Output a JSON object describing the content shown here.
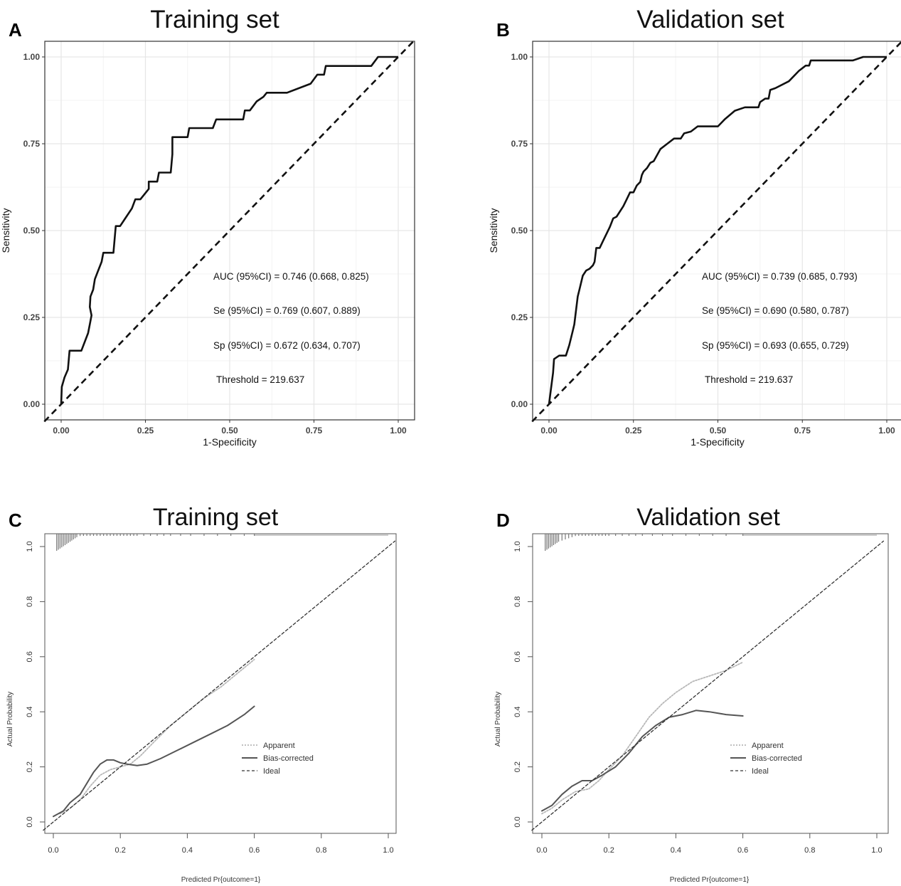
{
  "chart_data": [
    {
      "panel": "A",
      "type": "line",
      "title": "Training set",
      "xlabel": "1-Specificity",
      "ylabel": "Sensitivity",
      "xlim": [
        0,
        1
      ],
      "ylim": [
        0,
        1
      ],
      "xticks": [
        "0.00",
        "0.25",
        "0.50",
        "0.75",
        "1.00"
      ],
      "yticks": [
        "0.00",
        "0.25",
        "0.50",
        "0.75",
        "1.00"
      ],
      "grid": true,
      "annotations": [
        "AUC (95%CI) = 0.746 (0.668, 0.825)",
        "Se (95%CI) = 0.769 (0.607, 0.889)",
        "Sp (95%CI) = 0.672 (0.634, 0.707)",
        "Threshold = 219.637"
      ],
      "reference_line": [
        [
          0,
          0
        ],
        [
          1,
          1
        ]
      ],
      "series": [
        {
          "points": [
            [
              0,
              0
            ],
            [
              0.002,
              0.05
            ],
            [
              0.01,
              0.077
            ],
            [
              0.02,
              0.1
            ],
            [
              0.025,
              0.154
            ],
            [
              0.06,
              0.154
            ],
            [
              0.08,
              0.205
            ],
            [
              0.085,
              0.23
            ],
            [
              0.09,
              0.256
            ],
            [
              0.085,
              0.28
            ],
            [
              0.087,
              0.31
            ],
            [
              0.095,
              0.33
            ],
            [
              0.1,
              0.36
            ],
            [
              0.11,
              0.385
            ],
            [
              0.12,
              0.41
            ],
            [
              0.125,
              0.436
            ],
            [
              0.155,
              0.436
            ],
            [
              0.16,
              0.49
            ],
            [
              0.162,
              0.513
            ],
            [
              0.175,
              0.513
            ],
            [
              0.19,
              0.535
            ],
            [
              0.21,
              0.564
            ],
            [
              0.22,
              0.59
            ],
            [
              0.235,
              0.59
            ],
            [
              0.26,
              0.62
            ],
            [
              0.26,
              0.641
            ],
            [
              0.285,
              0.641
            ],
            [
              0.29,
              0.667
            ],
            [
              0.31,
              0.667
            ],
            [
              0.325,
              0.667
            ],
            [
              0.33,
              0.72
            ],
            [
              0.33,
              0.769
            ],
            [
              0.375,
              0.769
            ],
            [
              0.38,
              0.795
            ],
            [
              0.45,
              0.795
            ],
            [
              0.46,
              0.82
            ],
            [
              0.54,
              0.82
            ],
            [
              0.545,
              0.846
            ],
            [
              0.56,
              0.846
            ],
            [
              0.58,
              0.872
            ],
            [
              0.6,
              0.885
            ],
            [
              0.61,
              0.897
            ],
            [
              0.67,
              0.897
            ],
            [
              0.74,
              0.923
            ],
            [
              0.76,
              0.949
            ],
            [
              0.78,
              0.949
            ],
            [
              0.785,
              0.974
            ],
            [
              0.92,
              0.974
            ],
            [
              0.94,
              1.0
            ],
            [
              1.0,
              1.0
            ]
          ]
        }
      ]
    },
    {
      "panel": "B",
      "type": "line",
      "title": "Validation set",
      "xlabel": "1-Specificity",
      "ylabel": "Sensitivity",
      "xlim": [
        0,
        1
      ],
      "ylim": [
        0,
        1
      ],
      "xticks": [
        "0.00",
        "0.25",
        "0.50",
        "0.75",
        "1.00"
      ],
      "yticks": [
        "0.00",
        "0.25",
        "0.50",
        "0.75",
        "1.00"
      ],
      "grid": true,
      "annotations": [
        "AUC (95%CI) = 0.739 (0.685, 0.793)",
        "Se (95%CI) = 0.690 (0.580, 0.787)",
        "Sp (95%CI) = 0.693 (0.655, 0.729)",
        "Threshold = 219.637"
      ],
      "reference_line": [
        [
          0,
          0
        ],
        [
          1,
          1
        ]
      ],
      "series": [
        {
          "points": [
            [
              0,
              0
            ],
            [
              0.008,
              0.06
            ],
            [
              0.012,
              0.09
            ],
            [
              0.015,
              0.13
            ],
            [
              0.03,
              0.14
            ],
            [
              0.05,
              0.14
            ],
            [
              0.06,
              0.17
            ],
            [
              0.07,
              0.21
            ],
            [
              0.075,
              0.23
            ],
            [
              0.08,
              0.27
            ],
            [
              0.085,
              0.31
            ],
            [
              0.09,
              0.33
            ],
            [
              0.1,
              0.37
            ],
            [
              0.11,
              0.385
            ],
            [
              0.12,
              0.39
            ],
            [
              0.13,
              0.4
            ],
            [
              0.135,
              0.41
            ],
            [
              0.14,
              0.45
            ],
            [
              0.15,
              0.45
            ],
            [
              0.16,
              0.47
            ],
            [
              0.18,
              0.51
            ],
            [
              0.19,
              0.535
            ],
            [
              0.2,
              0.54
            ],
            [
              0.22,
              0.57
            ],
            [
              0.23,
              0.59
            ],
            [
              0.24,
              0.61
            ],
            [
              0.25,
              0.61
            ],
            [
              0.26,
              0.63
            ],
            [
              0.27,
              0.64
            ],
            [
              0.275,
              0.66
            ],
            [
              0.28,
              0.67
            ],
            [
              0.29,
              0.68
            ],
            [
              0.3,
              0.695
            ],
            [
              0.31,
              0.7
            ],
            [
              0.33,
              0.735
            ],
            [
              0.35,
              0.75
            ],
            [
              0.37,
              0.765
            ],
            [
              0.39,
              0.765
            ],
            [
              0.4,
              0.78
            ],
            [
              0.42,
              0.785
            ],
            [
              0.44,
              0.8
            ],
            [
              0.5,
              0.8
            ],
            [
              0.52,
              0.82
            ],
            [
              0.55,
              0.845
            ],
            [
              0.58,
              0.855
            ],
            [
              0.62,
              0.855
            ],
            [
              0.625,
              0.87
            ],
            [
              0.64,
              0.88
            ],
            [
              0.65,
              0.88
            ],
            [
              0.655,
              0.905
            ],
            [
              0.67,
              0.91
            ],
            [
              0.71,
              0.93
            ],
            [
              0.74,
              0.96
            ],
            [
              0.76,
              0.975
            ],
            [
              0.77,
              0.975
            ],
            [
              0.775,
              0.99
            ],
            [
              0.9,
              0.99
            ],
            [
              0.93,
              1.0
            ],
            [
              1.0,
              1.0
            ]
          ]
        }
      ]
    },
    {
      "panel": "C",
      "type": "line",
      "title": "Training set",
      "xlabel": "Predicted Pr{outcome=1}",
      "ylabel": "Actual Probability",
      "xlim": [
        0,
        1
      ],
      "ylim": [
        0,
        1
      ],
      "xticks": [
        "0.0",
        "0.2",
        "0.4",
        "0.6",
        "0.8",
        "1.0"
      ],
      "yticks": [
        "0.0",
        "0.2",
        "0.4",
        "0.6",
        "0.8",
        "1.0"
      ],
      "grid": false,
      "legend": "center-right",
      "rug": [
        0.01,
        0.015,
        0.02,
        0.025,
        0.03,
        0.035,
        0.04,
        0.045,
        0.05,
        0.055,
        0.06,
        0.065,
        0.07,
        0.08,
        0.09,
        0.1,
        0.11,
        0.12,
        0.13,
        0.14,
        0.15,
        0.16,
        0.17,
        0.18,
        0.19,
        0.2,
        0.21,
        0.22,
        0.23,
        0.24,
        0.25,
        0.27,
        0.29,
        0.31,
        0.33,
        0.35,
        0.38,
        0.41,
        0.45,
        0.49,
        0.53,
        0.57,
        0.6
      ],
      "series": [
        {
          "name": "Apparent",
          "style": "dotted",
          "color": "#b8b8b8",
          "points": [
            [
              0.02,
              0.03
            ],
            [
              0.05,
              0.05
            ],
            [
              0.08,
              0.08
            ],
            [
              0.11,
              0.13
            ],
            [
              0.14,
              0.17
            ],
            [
              0.17,
              0.19
            ],
            [
              0.2,
              0.2
            ],
            [
              0.23,
              0.21
            ],
            [
              0.26,
              0.24
            ],
            [
              0.3,
              0.29
            ],
            [
              0.35,
              0.35
            ],
            [
              0.4,
              0.4
            ],
            [
              0.45,
              0.45
            ],
            [
              0.5,
              0.49
            ],
            [
              0.55,
              0.54
            ],
            [
              0.6,
              0.59
            ]
          ]
        },
        {
          "name": "Bias-corrected",
          "style": "solid",
          "color": "#555555",
          "points": [
            [
              0.0,
              0.02
            ],
            [
              0.03,
              0.04
            ],
            [
              0.05,
              0.07
            ],
            [
              0.08,
              0.1
            ],
            [
              0.1,
              0.14
            ],
            [
              0.12,
              0.18
            ],
            [
              0.14,
              0.21
            ],
            [
              0.16,
              0.225
            ],
            [
              0.18,
              0.225
            ],
            [
              0.2,
              0.215
            ],
            [
              0.22,
              0.21
            ],
            [
              0.25,
              0.205
            ],
            [
              0.28,
              0.21
            ],
            [
              0.32,
              0.23
            ],
            [
              0.37,
              0.26
            ],
            [
              0.42,
              0.29
            ],
            [
              0.47,
              0.32
            ],
            [
              0.52,
              0.35
            ],
            [
              0.57,
              0.39
            ],
            [
              0.6,
              0.42
            ]
          ]
        },
        {
          "name": "Ideal",
          "style": "dashed",
          "color": "#333333",
          "points": [
            [
              -0.03,
              -0.03
            ],
            [
              1.02,
              1.02
            ]
          ]
        }
      ]
    },
    {
      "panel": "D",
      "type": "line",
      "title": "Validation set",
      "xlabel": "Predicted Pr{outcome=1}",
      "ylabel": "Actual Probability",
      "xlim": [
        0,
        1
      ],
      "ylim": [
        0,
        1
      ],
      "xticks": [
        "0.0",
        "0.2",
        "0.4",
        "0.6",
        "0.8",
        "1.0"
      ],
      "yticks": [
        "0.0",
        "0.2",
        "0.4",
        "0.6",
        "0.8",
        "1.0"
      ],
      "grid": false,
      "legend": "center-right",
      "rug": [
        0.01,
        0.015,
        0.02,
        0.025,
        0.03,
        0.035,
        0.04,
        0.045,
        0.05,
        0.06,
        0.07,
        0.08,
        0.09,
        0.1,
        0.11,
        0.12,
        0.13,
        0.14,
        0.15,
        0.16,
        0.17,
        0.18,
        0.19,
        0.2,
        0.22,
        0.24,
        0.26,
        0.28,
        0.3,
        0.33,
        0.36,
        0.39,
        0.43,
        0.47,
        0.51,
        0.55,
        0.6
      ],
      "series": [
        {
          "name": "Apparent",
          "style": "dotted",
          "color": "#b8b8b8",
          "points": [
            [
              0.0,
              0.03
            ],
            [
              0.03,
              0.05
            ],
            [
              0.06,
              0.08
            ],
            [
              0.1,
              0.11
            ],
            [
              0.14,
              0.12
            ],
            [
              0.17,
              0.15
            ],
            [
              0.2,
              0.19
            ],
            [
              0.24,
              0.24
            ],
            [
              0.28,
              0.31
            ],
            [
              0.32,
              0.38
            ],
            [
              0.36,
              0.43
            ],
            [
              0.4,
              0.47
            ],
            [
              0.45,
              0.51
            ],
            [
              0.5,
              0.53
            ],
            [
              0.55,
              0.55
            ],
            [
              0.6,
              0.58
            ]
          ]
        },
        {
          "name": "Bias-corrected",
          "style": "solid",
          "color": "#555555",
          "points": [
            [
              0.0,
              0.04
            ],
            [
              0.03,
              0.06
            ],
            [
              0.06,
              0.1
            ],
            [
              0.09,
              0.13
            ],
            [
              0.12,
              0.15
            ],
            [
              0.15,
              0.15
            ],
            [
              0.18,
              0.17
            ],
            [
              0.22,
              0.2
            ],
            [
              0.26,
              0.25
            ],
            [
              0.3,
              0.31
            ],
            [
              0.34,
              0.35
            ],
            [
              0.38,
              0.38
            ],
            [
              0.42,
              0.39
            ],
            [
              0.46,
              0.405
            ],
            [
              0.5,
              0.4
            ],
            [
              0.55,
              0.39
            ],
            [
              0.6,
              0.385
            ]
          ]
        },
        {
          "name": "Ideal",
          "style": "dashed",
          "color": "#333333",
          "points": [
            [
              -0.03,
              -0.03
            ],
            [
              1.02,
              1.02
            ]
          ]
        }
      ]
    }
  ]
}
